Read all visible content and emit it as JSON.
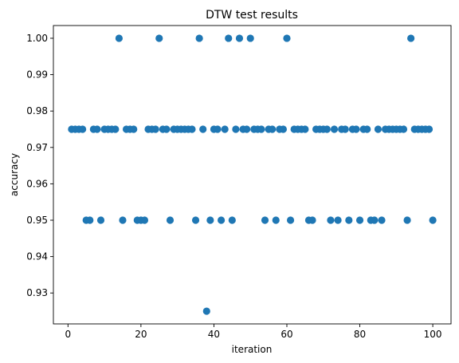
{
  "chart_data": {
    "type": "scatter",
    "title": "DTW test results",
    "xlabel": "iteration",
    "ylabel": "accuracy",
    "xlim": [
      -4,
      105
    ],
    "ylim": [
      0.9215,
      1.0035
    ],
    "xticks": [
      0,
      20,
      40,
      60,
      80,
      100
    ],
    "yticks": [
      0.93,
      0.94,
      0.95,
      0.96,
      0.97,
      0.98,
      0.99,
      1.0
    ],
    "xtick_labels": [
      "0",
      "20",
      "40",
      "60",
      "80",
      "100"
    ],
    "ytick_labels": [
      "0.93",
      "0.94",
      "0.95",
      "0.96",
      "0.97",
      "0.98",
      "0.99",
      "1.00"
    ],
    "grid": false,
    "marker_color": "#1f77b4",
    "series": [
      {
        "x": [
          1,
          2,
          3,
          4,
          5,
          6,
          7,
          8,
          9,
          10,
          11,
          12,
          13,
          14,
          15,
          16,
          17,
          18,
          19,
          20,
          21,
          22,
          23,
          24,
          25,
          26,
          27,
          28,
          29,
          30,
          31,
          32,
          33,
          34,
          35,
          36,
          37,
          38,
          39,
          40,
          41,
          42,
          43,
          44,
          45,
          46,
          47,
          48,
          49,
          50,
          51,
          52,
          53,
          54,
          55,
          56,
          57,
          58,
          59,
          60,
          61,
          62,
          63,
          64,
          65,
          66,
          67,
          68,
          69,
          70,
          71,
          72,
          73,
          74,
          75,
          76,
          77,
          78,
          79,
          80,
          81,
          82,
          83,
          84,
          85,
          86,
          87,
          88,
          89,
          90,
          91,
          92,
          93,
          94,
          95,
          96,
          97,
          98,
          99,
          100
        ],
        "y": [
          0.975,
          0.975,
          0.975,
          0.975,
          0.95,
          0.95,
          0.975,
          0.975,
          0.95,
          0.975,
          0.975,
          0.975,
          0.975,
          1.0,
          0.95,
          0.975,
          0.975,
          0.975,
          0.95,
          0.95,
          0.95,
          0.975,
          0.975,
          0.975,
          1.0,
          0.975,
          0.975,
          0.95,
          0.975,
          0.975,
          0.975,
          0.975,
          0.975,
          0.975,
          0.95,
          1.0,
          0.975,
          0.925,
          0.95,
          0.975,
          0.975,
          0.95,
          0.975,
          1.0,
          0.95,
          0.975,
          1.0,
          0.975,
          0.975,
          1.0,
          0.975,
          0.975,
          0.975,
          0.95,
          0.975,
          0.975,
          0.95,
          0.975,
          0.975,
          1.0,
          0.95,
          0.975,
          0.975,
          0.975,
          0.975,
          0.95,
          0.95,
          0.975,
          0.975,
          0.975,
          0.975,
          0.95,
          0.975,
          0.95,
          0.975,
          0.975,
          0.95,
          0.975,
          0.975,
          0.95,
          0.975,
          0.975,
          0.95,
          0.95,
          0.975,
          0.95,
          0.975,
          0.975,
          0.975,
          0.975,
          0.975,
          0.975,
          0.95,
          1.0,
          0.975,
          0.975,
          0.975,
          0.975,
          0.975,
          0.95
        ]
      }
    ]
  }
}
